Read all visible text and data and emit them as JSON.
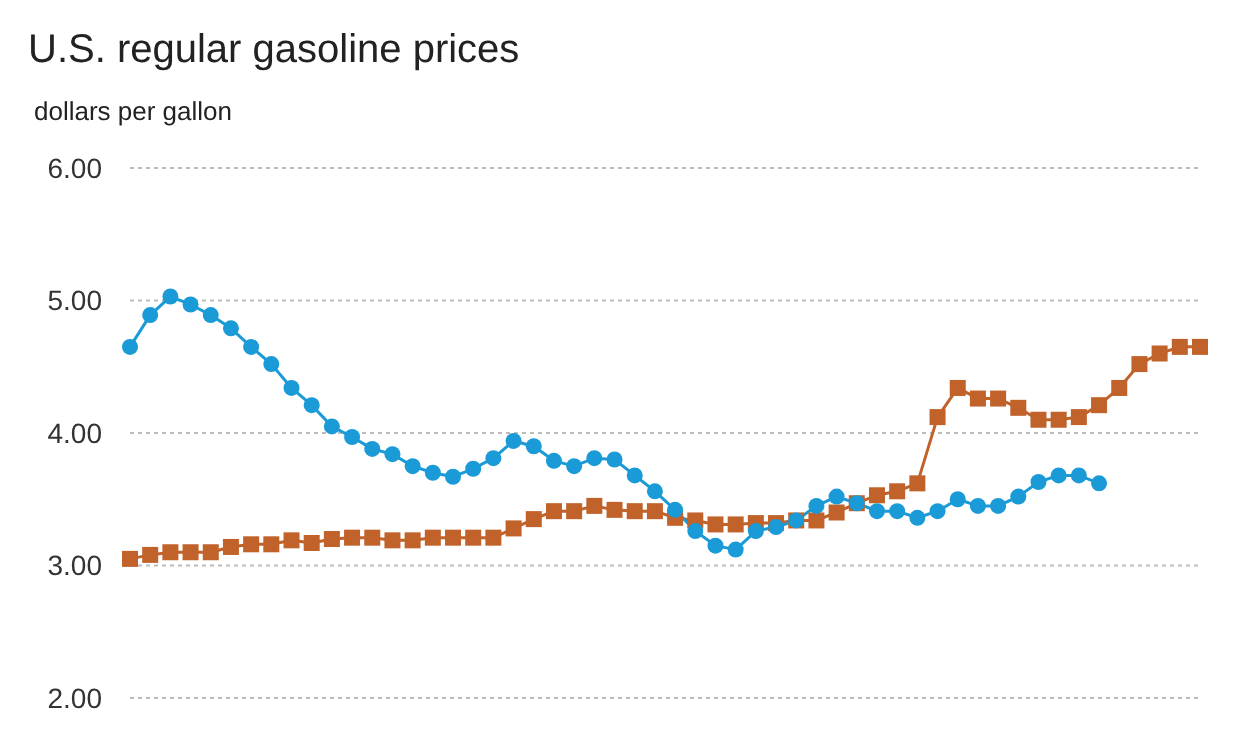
{
  "chart_data": {
    "type": "line",
    "title": "U.S. regular gasoline prices",
    "subtitle": "dollars per gallon",
    "categories": [
      null,
      null,
      null,
      null,
      null,
      null,
      null,
      null,
      null,
      null,
      null,
      null,
      null,
      null,
      null,
      null,
      null,
      null,
      null,
      null,
      null,
      null,
      null,
      null,
      null,
      null,
      null,
      null,
      null,
      null,
      null,
      null,
      null,
      null,
      null,
      null,
      null,
      null,
      null,
      null,
      null,
      null,
      null,
      null,
      null,
      null,
      null,
      null,
      null,
      null,
      null,
      null,
      null,
      null
    ],
    "series": [
      {
        "color": "#1a9ad6",
        "marker": "circle",
        "values": [
          4.65,
          4.89,
          5.03,
          4.97,
          4.89,
          4.79,
          4.65,
          4.52,
          4.34,
          4.21,
          4.05,
          3.97,
          3.88,
          3.84,
          3.75,
          3.7,
          3.67,
          3.73,
          3.81,
          3.94,
          3.9,
          3.79,
          3.75,
          3.81,
          3.8,
          3.68,
          3.56,
          3.42,
          3.26,
          3.15,
          3.12,
          3.26,
          3.29,
          3.34,
          3.45,
          3.52,
          3.47,
          3.41,
          3.41,
          3.36,
          3.41,
          3.5,
          3.45,
          3.45,
          3.52,
          3.63,
          3.68,
          3.68,
          3.62,
          null,
          null,
          null,
          null,
          null
        ]
      },
      {
        "color": "#c0622a",
        "marker": "square",
        "values": [
          3.05,
          3.08,
          3.1,
          3.1,
          3.1,
          3.14,
          3.16,
          3.16,
          3.19,
          3.17,
          3.2,
          3.21,
          3.21,
          3.19,
          3.19,
          3.21,
          3.21,
          3.21,
          3.21,
          3.28,
          3.35,
          3.41,
          3.41,
          3.45,
          3.42,
          3.41,
          3.41,
          3.36,
          3.34,
          3.31,
          3.31,
          3.32,
          3.32,
          3.34,
          3.34,
          3.4,
          3.47,
          3.53,
          3.56,
          3.62,
          4.12,
          4.34,
          4.26,
          4.26,
          4.19,
          4.1,
          4.1,
          4.12,
          4.21,
          4.34,
          4.52,
          4.6,
          4.65,
          4.65
        ]
      }
    ],
    "ylim": [
      2,
      6
    ],
    "yticks": [
      {
        "value": 2,
        "label": "2.00"
      },
      {
        "value": 3,
        "label": "3.00"
      },
      {
        "value": 4,
        "label": "4.00"
      },
      {
        "value": 5,
        "label": "5.00"
      },
      {
        "value": 6,
        "label": "6.00"
      }
    ],
    "grid": "y",
    "tick_labels": "y"
  }
}
